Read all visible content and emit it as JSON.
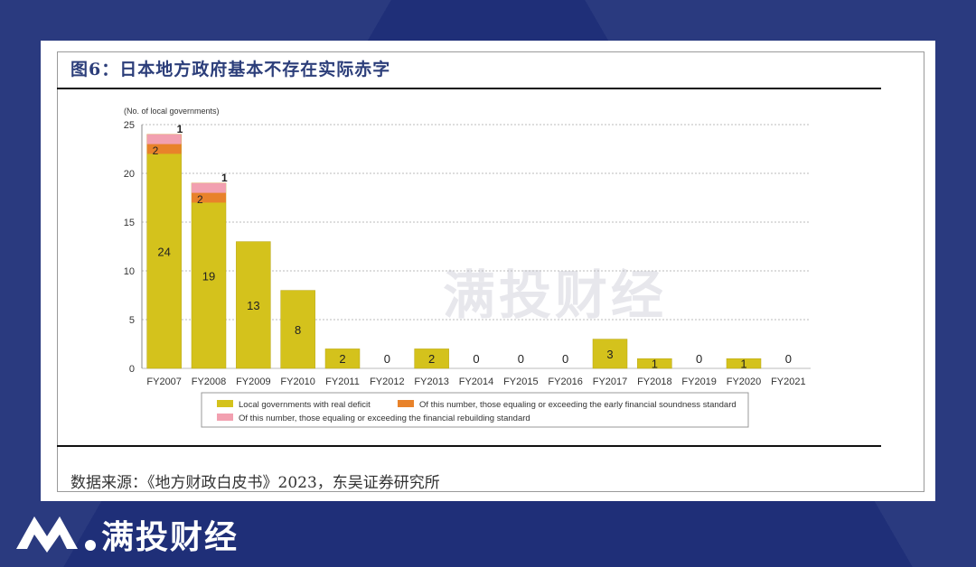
{
  "figure": {
    "title": "图6：日本地方政府基本不存在实际赤字",
    "source": "数据来源：《地方财政白皮书》2023，东吴证券研究所"
  },
  "brand": {
    "name": "满投财经",
    "watermark": "满投财经"
  },
  "colors": {
    "background": "#1f2f78",
    "bar_main": "#d4c21c",
    "bar_orange": "#e8822a",
    "bar_pink": "#f2a0b0",
    "title": "#2c3e7a"
  },
  "chart_data": {
    "type": "bar",
    "ylabel": "(No. of local governments)",
    "ylim": [
      0,
      25
    ],
    "yticks": [
      0,
      5,
      10,
      15,
      20,
      25
    ],
    "grid": true,
    "legend_position": "bottom",
    "categories": [
      "FY2007",
      "FY2008",
      "FY2009",
      "FY2010",
      "FY2011",
      "FY2012",
      "FY2013",
      "FY2014",
      "FY2015",
      "FY2016",
      "FY2017",
      "FY2018",
      "FY2019",
      "FY2020",
      "FY2021"
    ],
    "series": [
      {
        "name": "Local governments with real deficit",
        "values": [
          24,
          19,
          13,
          8,
          2,
          0,
          2,
          0,
          0,
          0,
          3,
          1,
          0,
          1,
          0
        ]
      },
      {
        "name": "Of this number, those equaling or exceeding the early financial soundness standard",
        "values": [
          2,
          2,
          0,
          0,
          0,
          0,
          0,
          0,
          0,
          0,
          0,
          0,
          0,
          0,
          0
        ]
      },
      {
        "name": "Of this number, those equaling or exceeding the financial rebuilding standard",
        "values": [
          1,
          1,
          0,
          0,
          0,
          0,
          0,
          0,
          0,
          0,
          0,
          0,
          0,
          0,
          0
        ]
      }
    ]
  }
}
